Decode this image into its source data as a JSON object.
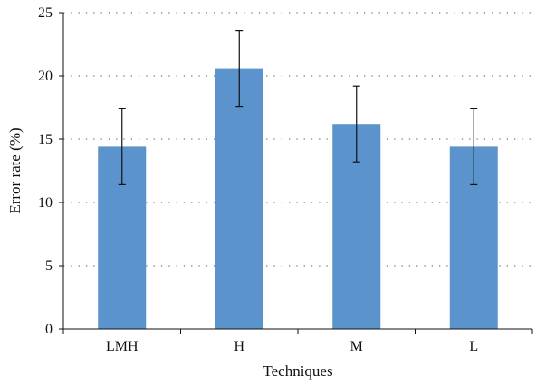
{
  "chart_data": {
    "type": "bar",
    "categories": [
      "LMH",
      "H",
      "M",
      "L"
    ],
    "values": [
      14.4,
      20.6,
      16.2,
      14.4
    ],
    "error": [
      3.0,
      3.0,
      3.0,
      3.0
    ],
    "xlabel": "Techniques",
    "ylabel": "Error rate (%)",
    "ylim": [
      0,
      25
    ],
    "yticks": [
      "0",
      "5",
      "10",
      "15",
      "20",
      "25"
    ],
    "grid": "horizontal-dotted",
    "bar_color": "#5b93cc",
    "error_bar_color": "#111111"
  }
}
